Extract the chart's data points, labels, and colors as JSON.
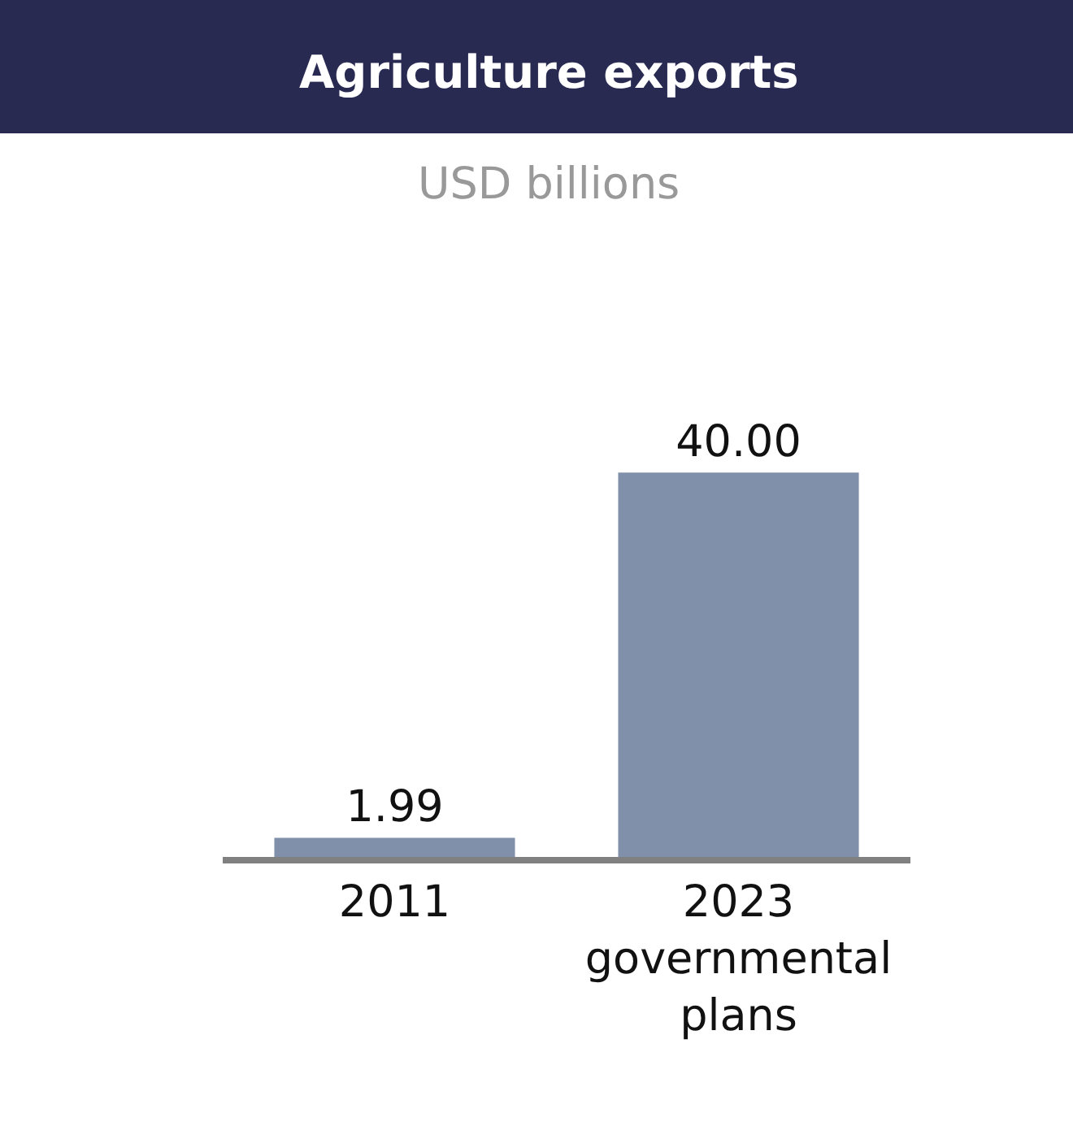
{
  "chart_data": {
    "type": "bar",
    "title": "Agriculture exports",
    "subtitle": "USD billions",
    "categories": [
      "2011",
      "2023 governmental plans"
    ],
    "values": [
      1.99,
      40.0
    ],
    "value_labels": [
      "1.99",
      "40.00"
    ],
    "color": "#8190aa"
  }
}
